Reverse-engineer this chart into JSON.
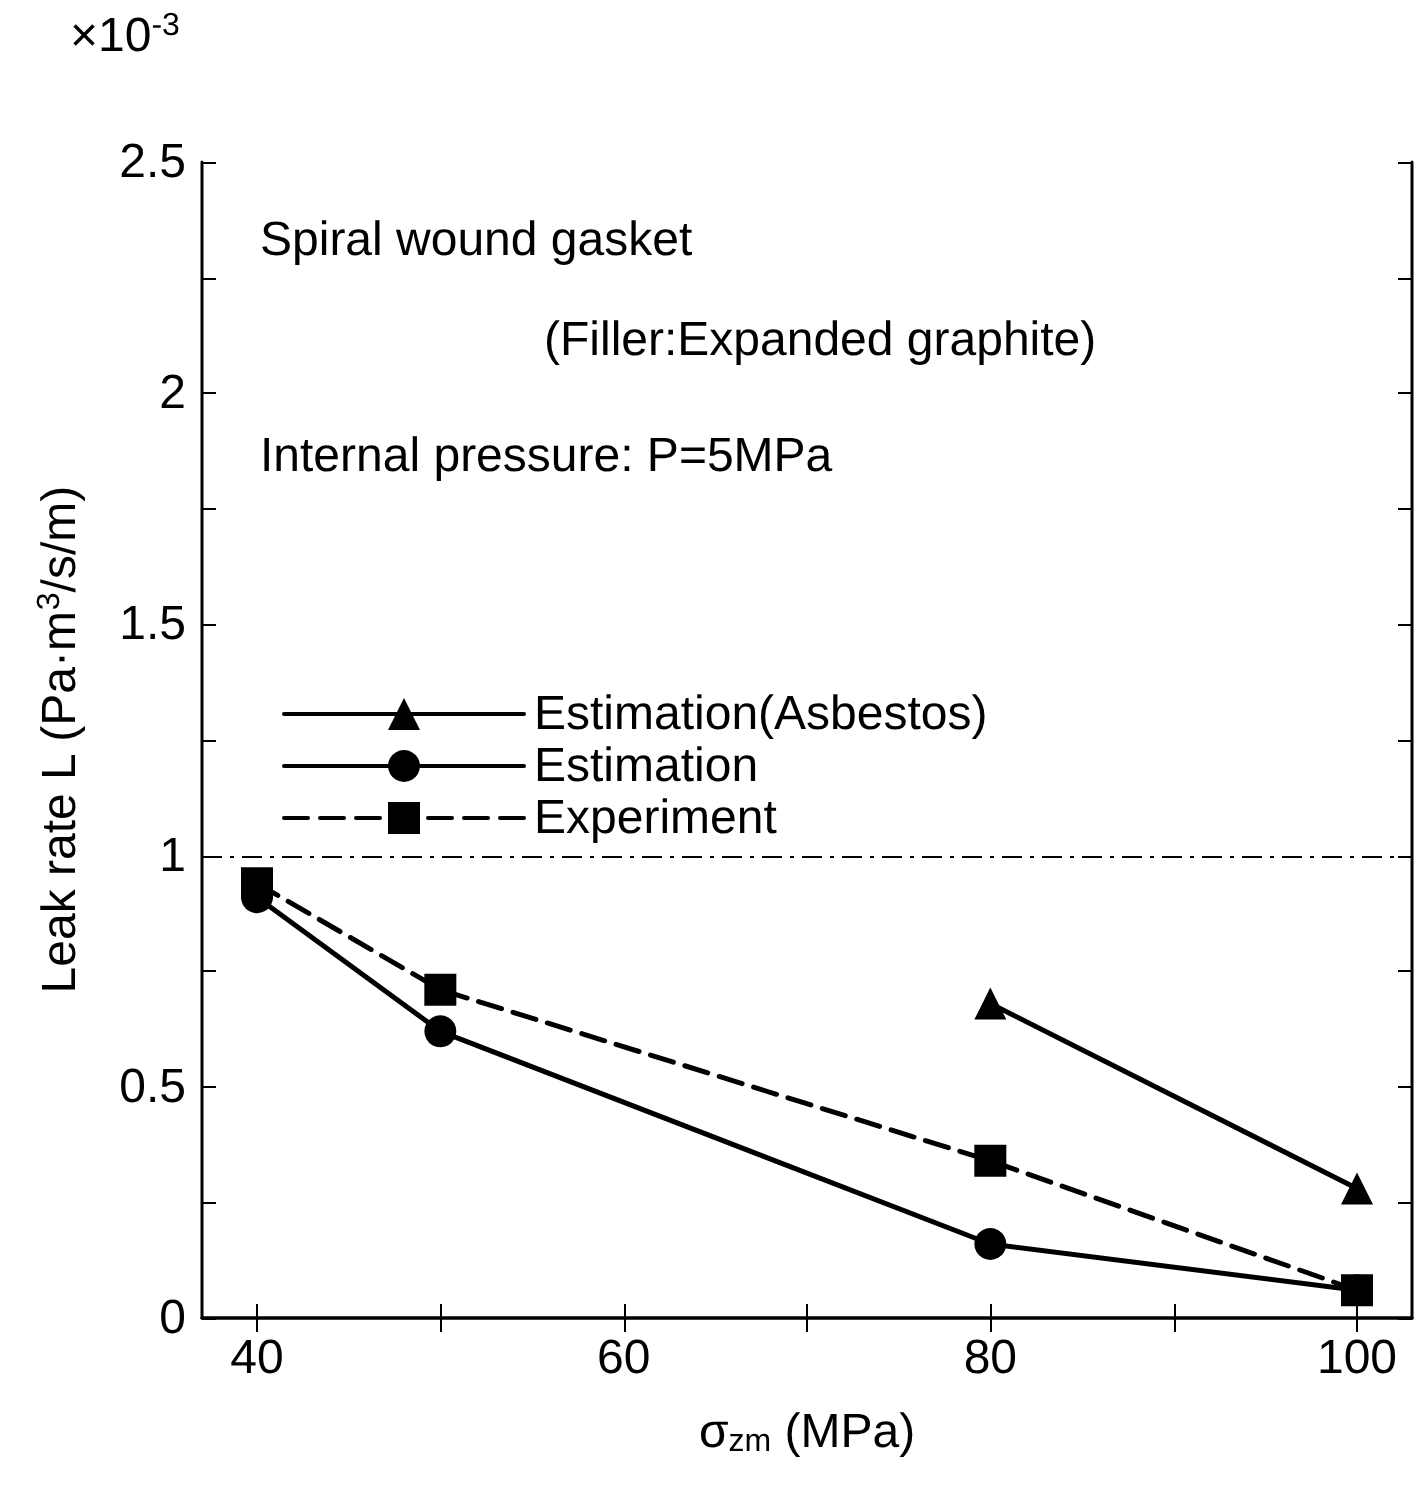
{
  "chart_data": {
    "type": "line",
    "xlabel": "σ$_{zm}$ (MPa)",
    "ylabel": "Leak rate L (Pa·m$^{3}$/s/m)",
    "annotations": [
      "×10$^{-3}$",
      "Spiral wound gasket",
      "(Filler:Expanded graphite)",
      "Internal pressure: P=5MPa"
    ],
    "series": [
      {
        "name": "Estimation(Asbestos)",
        "color": "#000000",
        "x": [
          80,
          100
        ],
        "values": [
          0.68,
          0.28
        ],
        "marker": "triangle",
        "line_style": "solid"
      },
      {
        "name": "Estimation",
        "color": "#000000",
        "x": [
          40,
          50,
          80,
          100
        ],
        "values": [
          0.91,
          0.62,
          0.16,
          0.06
        ],
        "marker": "circle",
        "line_style": "solid"
      },
      {
        "name": "Experiment",
        "color": "#000000",
        "x": [
          40,
          50,
          80,
          100
        ],
        "values": [
          0.94,
          0.71,
          0.34,
          0.06
        ],
        "marker": "square",
        "line_style": "dashed"
      }
    ],
    "xlim": [
      37,
      103
    ],
    "xticks": [
      40,
      {
        "value": 50,
        "label": null
      },
      60,
      {
        "value": 70,
        "label": null
      },
      80,
      {
        "value": 90,
        "label": null
      },
      100
    ],
    "ylim": [
      0,
      2.5
    ],
    "yticks": [
      0,
      {
        "value": 0.25,
        "label": null
      },
      0.5,
      {
        "value": 0.75,
        "label": null
      },
      1,
      {
        "value": 1.25,
        "label": null
      },
      1.5,
      {
        "value": 1.75,
        "label": null
      },
      2,
      {
        "value": 2.25,
        "label": null
      },
      2.5
    ],
    "ref_lines": [
      {
        "axis": "y",
        "value": 1,
        "label": null,
        "color": "#000000",
        "line_style": "dashdot"
      }
    ],
    "grid": false,
    "legend": "left"
  }
}
